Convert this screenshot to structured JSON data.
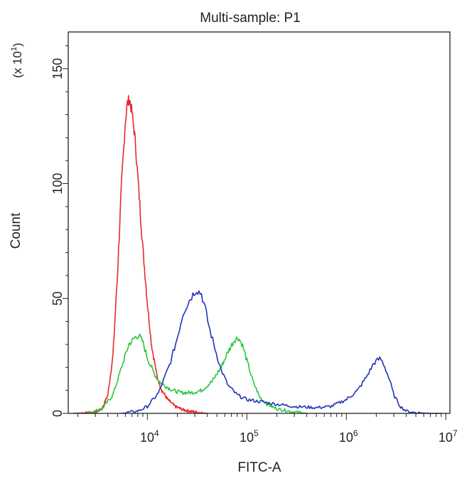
{
  "chart_data": {
    "type": "line",
    "title": "Multi-sample: P1",
    "xlabel": "FITC-A",
    "ylabel": "Count",
    "y_multiplier": "(x 10",
    "y_multiplier_exp": "1",
    "y_multiplier_close": ")",
    "x_scale": "log",
    "xlim": [
      1600,
      11000000
    ],
    "ylim": [
      0,
      166
    ],
    "x_ticks": [
      {
        "value": 10000,
        "base": "10",
        "exp": "4"
      },
      {
        "value": 100000,
        "base": "10",
        "exp": "5"
      },
      {
        "value": 1000000,
        "base": "10",
        "exp": "6"
      },
      {
        "value": 10000000,
        "base": "10",
        "exp": "7"
      }
    ],
    "y_ticks": [
      {
        "value": 0,
        "label": "0"
      },
      {
        "value": 50,
        "label": "50"
      },
      {
        "value": 100,
        "label": "100"
      },
      {
        "value": 150,
        "label": "150"
      }
    ],
    "grid": false,
    "legend": "none",
    "series": [
      {
        "color": "#e8282b",
        "x": [
          1800,
          3000,
          3500,
          4000,
          4500,
          5000,
          5500,
          6000,
          6300,
          6600,
          7000,
          7500,
          8200,
          9000,
          10000,
          11000,
          12500,
          14000,
          16000,
          19000,
          23000,
          28000,
          34000,
          40000
        ],
        "y": [
          0,
          0.5,
          2,
          8,
          25,
          60,
          100,
          127,
          135,
          137,
          131,
          120,
          97,
          72,
          48,
          30,
          16,
          10,
          6,
          3,
          1.5,
          0.8,
          0.3,
          0
        ]
      },
      {
        "color": "#28c83c",
        "x": [
          2500,
          3500,
          4500,
          5500,
          6500,
          7500,
          8200,
          9000,
          10000,
          11500,
          13000,
          15000,
          18000,
          22000,
          28000,
          35000,
          45000,
          55000,
          65000,
          75000,
          82000,
          90000,
          100000,
          115000,
          135000,
          160000,
          200000,
          280000,
          400000
        ],
        "y": [
          0,
          2,
          8,
          20,
          30,
          33,
          34,
          31,
          24,
          18,
          14,
          12,
          10,
          9,
          9,
          10,
          14,
          20,
          27,
          32,
          33,
          30,
          23,
          14,
          7,
          4,
          2,
          0.8,
          0
        ]
      },
      {
        "color": "#2034b8",
        "x": [
          5500,
          8000,
          10000,
          13000,
          17000,
          20000,
          23000,
          27000,
          31000,
          35000,
          38000,
          42000,
          48000,
          55000,
          65000,
          80000,
          100000,
          140000,
          200000,
          300000,
          500000,
          700000,
          1000000,
          1300000,
          1600000,
          1900000,
          2200000,
          2400000,
          2700000,
          3000000,
          3500000,
          4000000,
          5000000,
          7000000,
          9000000
        ],
        "y": [
          0,
          1,
          3,
          9,
          22,
          33,
          44,
          50,
          54,
          52,
          46,
          37,
          28,
          19,
          12,
          8,
          6,
          5,
          4,
          3,
          2.5,
          3,
          6,
          10,
          16,
          22,
          24,
          21,
          15,
          8,
          3,
          1,
          0.3,
          0,
          0
        ]
      }
    ]
  }
}
